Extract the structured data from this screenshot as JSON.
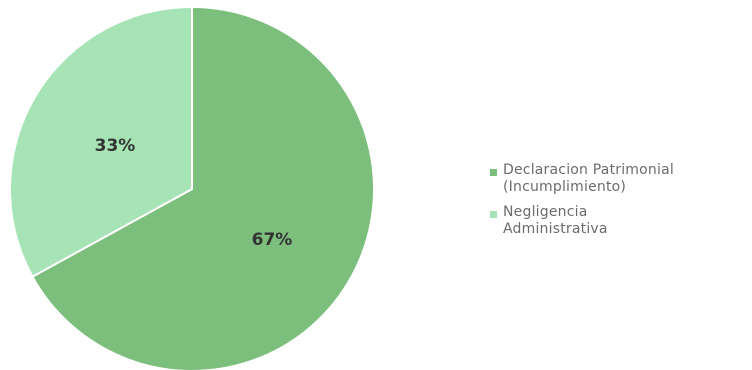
{
  "chart_data": {
    "type": "pie",
    "series": [
      {
        "slices": [
          {
            "label": "Declaracion Patrimonial (Incumplimiento)",
            "legend_lines": [
              "Declaracion Patrimonial",
              "(Incumplimiento)"
            ],
            "value": 67,
            "display": "67%",
            "color": "#7cbf7c"
          },
          {
            "label": "Negligencia Administrativa",
            "legend_lines": [
              "Negligencia",
              "Administrativa"
            ],
            "value": 33,
            "display": "33%",
            "color": "#a6e3b5"
          }
        ]
      }
    ],
    "legend_position": "right"
  }
}
